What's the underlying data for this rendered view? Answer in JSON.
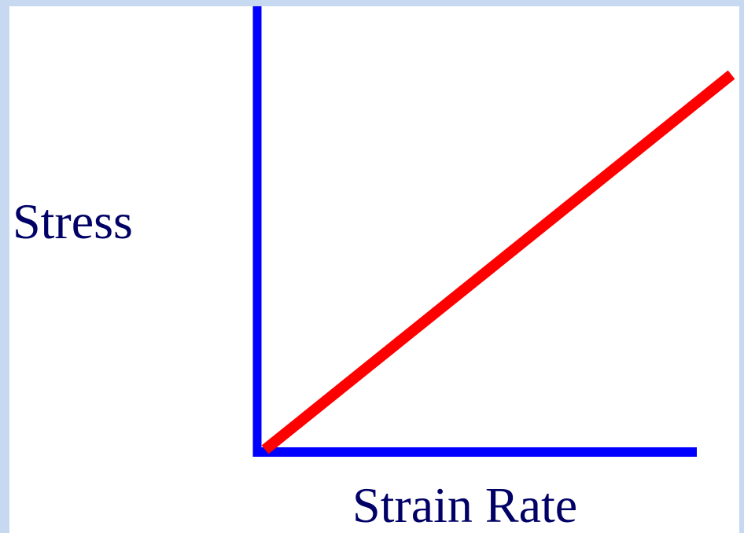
{
  "diagram": {
    "y_axis_label": "Stress",
    "x_axis_label": "Strain Rate"
  }
}
